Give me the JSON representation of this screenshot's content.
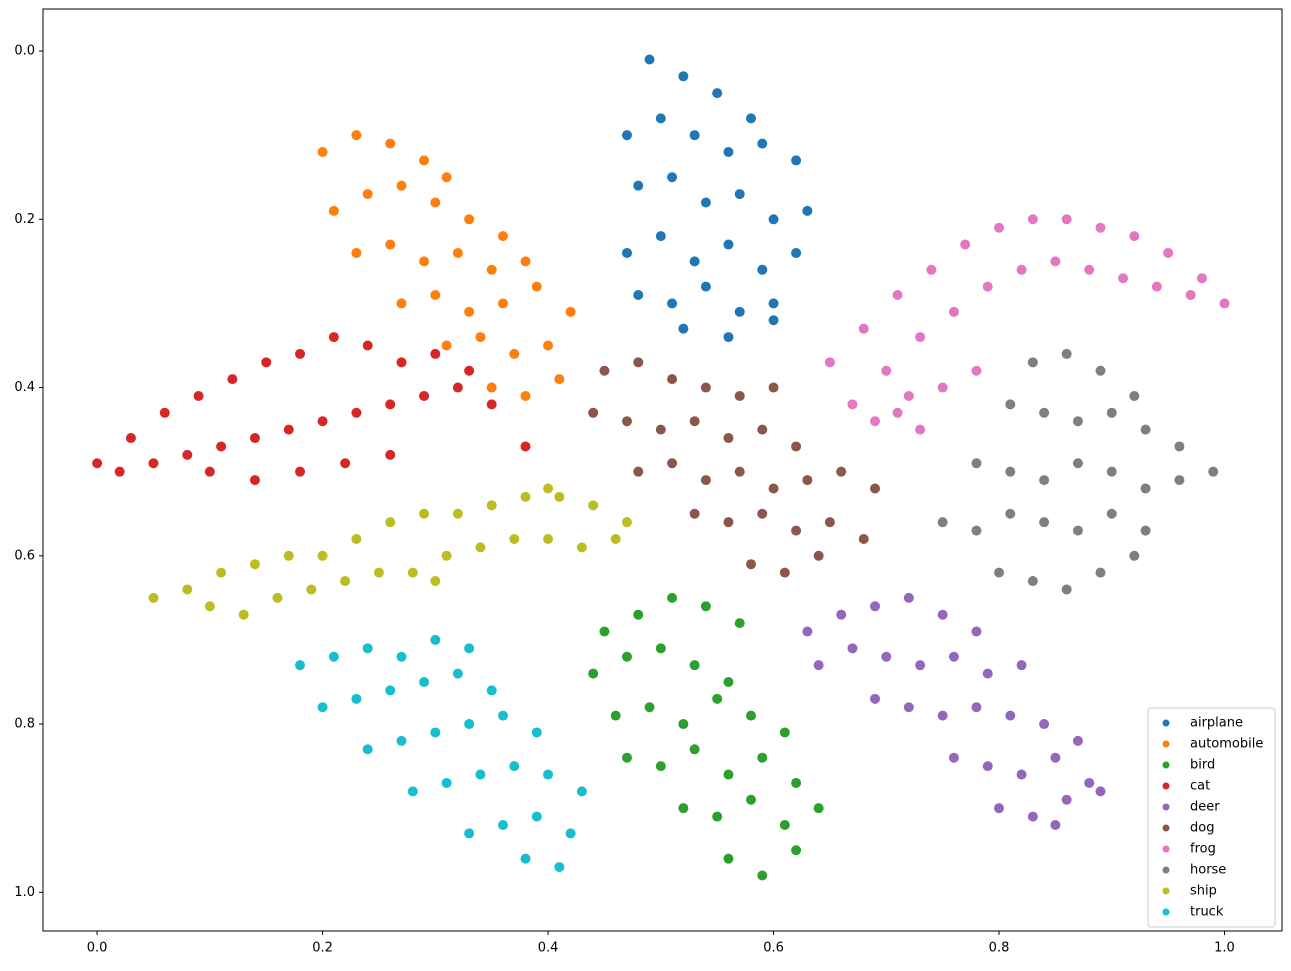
{
  "chart_data": {
    "type": "scatter",
    "xlim": [
      -0.048,
      1.051
    ],
    "ylim": [
      1.046,
      -0.05
    ],
    "y_inverted": true,
    "xticks": [
      {
        "value": 0,
        "label": "0.0"
      },
      0.2,
      0.4,
      0.6,
      0.8,
      {
        "value": 1,
        "label": "1.0"
      }
    ],
    "yticks": [
      {
        "value": 0,
        "label": "0.0"
      },
      0.2,
      0.4,
      0.6,
      0.8,
      {
        "value": 1,
        "label": "1.0"
      }
    ],
    "legend": "lower right",
    "series": [
      {
        "name": "airplane",
        "color": "#1f77b4",
        "x": [
          0.49,
          0.52,
          0.55,
          0.58,
          0.47,
          0.5,
          0.53,
          0.56,
          0.59,
          0.62,
          0.48,
          0.51,
          0.54,
          0.57,
          0.6,
          0.63,
          0.47,
          0.5,
          0.53,
          0.56,
          0.59,
          0.62,
          0.48,
          0.51,
          0.54,
          0.57,
          0.6,
          0.52,
          0.56,
          0.6
        ],
        "values": [
          0.01,
          0.03,
          0.05,
          0.08,
          0.1,
          0.08,
          0.1,
          0.12,
          0.11,
          0.13,
          0.16,
          0.15,
          0.18,
          0.17,
          0.2,
          0.19,
          0.24,
          0.22,
          0.25,
          0.23,
          0.26,
          0.24,
          0.29,
          0.3,
          0.28,
          0.31,
          0.3,
          0.33,
          0.34,
          0.32
        ]
      },
      {
        "name": "automobile",
        "color": "#ff7f0e",
        "x": [
          0.2,
          0.23,
          0.26,
          0.29,
          0.31,
          0.21,
          0.24,
          0.27,
          0.3,
          0.33,
          0.36,
          0.23,
          0.26,
          0.29,
          0.32,
          0.35,
          0.38,
          0.27,
          0.3,
          0.33,
          0.36,
          0.39,
          0.42,
          0.31,
          0.34,
          0.37,
          0.4,
          0.35,
          0.38,
          0.41
        ],
        "values": [
          0.12,
          0.1,
          0.11,
          0.13,
          0.15,
          0.19,
          0.17,
          0.16,
          0.18,
          0.2,
          0.22,
          0.24,
          0.23,
          0.25,
          0.24,
          0.26,
          0.25,
          0.3,
          0.29,
          0.31,
          0.3,
          0.28,
          0.31,
          0.35,
          0.34,
          0.36,
          0.35,
          0.4,
          0.41,
          0.39
        ]
      },
      {
        "name": "bird",
        "color": "#2ca02c",
        "x": [
          0.45,
          0.48,
          0.51,
          0.54,
          0.57,
          0.44,
          0.47,
          0.5,
          0.53,
          0.56,
          0.46,
          0.49,
          0.52,
          0.55,
          0.58,
          0.61,
          0.47,
          0.5,
          0.53,
          0.56,
          0.59,
          0.62,
          0.52,
          0.55,
          0.58,
          0.61,
          0.64,
          0.56,
          0.59,
          0.62
        ],
        "values": [
          0.69,
          0.67,
          0.65,
          0.66,
          0.68,
          0.74,
          0.72,
          0.71,
          0.73,
          0.75,
          0.79,
          0.78,
          0.8,
          0.77,
          0.79,
          0.81,
          0.84,
          0.85,
          0.83,
          0.86,
          0.84,
          0.87,
          0.9,
          0.91,
          0.89,
          0.92,
          0.9,
          0.96,
          0.98,
          0.95
        ]
      },
      {
        "name": "cat",
        "color": "#d62728",
        "x": [
          0.0,
          0.03,
          0.06,
          0.09,
          0.12,
          0.15,
          0.18,
          0.21,
          0.24,
          0.27,
          0.3,
          0.33,
          0.02,
          0.05,
          0.08,
          0.11,
          0.14,
          0.17,
          0.2,
          0.23,
          0.26,
          0.29,
          0.32,
          0.35,
          0.38,
          0.1,
          0.14,
          0.18,
          0.22,
          0.26
        ],
        "values": [
          0.49,
          0.46,
          0.43,
          0.41,
          0.39,
          0.37,
          0.36,
          0.34,
          0.35,
          0.37,
          0.36,
          0.38,
          0.5,
          0.49,
          0.48,
          0.47,
          0.46,
          0.45,
          0.44,
          0.43,
          0.42,
          0.41,
          0.4,
          0.42,
          0.47,
          0.5,
          0.51,
          0.5,
          0.49,
          0.48
        ]
      },
      {
        "name": "deer",
        "color": "#9467bd",
        "x": [
          0.63,
          0.66,
          0.69,
          0.72,
          0.75,
          0.78,
          0.64,
          0.67,
          0.7,
          0.73,
          0.76,
          0.79,
          0.82,
          0.69,
          0.72,
          0.75,
          0.78,
          0.81,
          0.84,
          0.87,
          0.76,
          0.79,
          0.82,
          0.85,
          0.88,
          0.8,
          0.83,
          0.86,
          0.89,
          0.85
        ],
        "values": [
          0.69,
          0.67,
          0.66,
          0.65,
          0.67,
          0.69,
          0.73,
          0.71,
          0.72,
          0.73,
          0.72,
          0.74,
          0.73,
          0.77,
          0.78,
          0.79,
          0.78,
          0.79,
          0.8,
          0.82,
          0.84,
          0.85,
          0.86,
          0.84,
          0.87,
          0.9,
          0.91,
          0.89,
          0.88,
          0.92
        ]
      },
      {
        "name": "dog",
        "color": "#8c564b",
        "x": [
          0.45,
          0.48,
          0.51,
          0.54,
          0.57,
          0.6,
          0.44,
          0.47,
          0.5,
          0.53,
          0.56,
          0.59,
          0.62,
          0.48,
          0.51,
          0.54,
          0.57,
          0.6,
          0.63,
          0.66,
          0.69,
          0.53,
          0.56,
          0.59,
          0.62,
          0.65,
          0.68,
          0.58,
          0.61,
          0.64
        ],
        "values": [
          0.38,
          0.37,
          0.39,
          0.4,
          0.41,
          0.4,
          0.43,
          0.44,
          0.45,
          0.44,
          0.46,
          0.45,
          0.47,
          0.5,
          0.49,
          0.51,
          0.5,
          0.52,
          0.51,
          0.5,
          0.52,
          0.55,
          0.56,
          0.55,
          0.57,
          0.56,
          0.58,
          0.61,
          0.62,
          0.6
        ]
      },
      {
        "name": "frog",
        "color": "#e377c2",
        "x": [
          0.65,
          0.68,
          0.71,
          0.74,
          0.77,
          0.8,
          0.83,
          0.86,
          0.89,
          0.92,
          0.95,
          0.98,
          0.67,
          0.7,
          0.73,
          0.76,
          0.79,
          0.82,
          0.85,
          0.88,
          0.91,
          0.94,
          0.97,
          1.0,
          0.69,
          0.72,
          0.75,
          0.78,
          0.73,
          0.71
        ],
        "values": [
          0.37,
          0.33,
          0.29,
          0.26,
          0.23,
          0.21,
          0.2,
          0.2,
          0.21,
          0.22,
          0.24,
          0.27,
          0.42,
          0.38,
          0.34,
          0.31,
          0.28,
          0.26,
          0.25,
          0.26,
          0.27,
          0.28,
          0.29,
          0.3,
          0.44,
          0.41,
          0.4,
          0.38,
          0.45,
          0.43
        ]
      },
      {
        "name": "horse",
        "color": "#7f7f7f",
        "x": [
          0.83,
          0.86,
          0.89,
          0.92,
          0.81,
          0.84,
          0.87,
          0.9,
          0.93,
          0.96,
          0.78,
          0.81,
          0.84,
          0.87,
          0.9,
          0.93,
          0.96,
          0.99,
          0.75,
          0.78,
          0.81,
          0.84,
          0.87,
          0.9,
          0.93,
          0.8,
          0.83,
          0.86,
          0.89,
          0.92
        ],
        "values": [
          0.37,
          0.36,
          0.38,
          0.41,
          0.42,
          0.43,
          0.44,
          0.43,
          0.45,
          0.47,
          0.49,
          0.5,
          0.51,
          0.49,
          0.5,
          0.52,
          0.51,
          0.5,
          0.56,
          0.57,
          0.55,
          0.56,
          0.57,
          0.55,
          0.57,
          0.62,
          0.63,
          0.64,
          0.62,
          0.6
        ]
      },
      {
        "name": "ship",
        "color": "#bcbd22",
        "x": [
          0.05,
          0.08,
          0.11,
          0.14,
          0.17,
          0.2,
          0.23,
          0.26,
          0.29,
          0.32,
          0.35,
          0.38,
          0.41,
          0.44,
          0.47,
          0.1,
          0.13,
          0.16,
          0.19,
          0.22,
          0.25,
          0.28,
          0.31,
          0.34,
          0.37,
          0.4,
          0.43,
          0.46,
          0.4,
          0.3
        ],
        "values": [
          0.65,
          0.64,
          0.62,
          0.61,
          0.6,
          0.6,
          0.58,
          0.56,
          0.55,
          0.55,
          0.54,
          0.53,
          0.53,
          0.54,
          0.56,
          0.66,
          0.67,
          0.65,
          0.64,
          0.63,
          0.62,
          0.62,
          0.6,
          0.59,
          0.58,
          0.58,
          0.59,
          0.58,
          0.52,
          0.63
        ]
      },
      {
        "name": "truck",
        "color": "#17becf",
        "x": [
          0.18,
          0.21,
          0.24,
          0.27,
          0.3,
          0.33,
          0.2,
          0.23,
          0.26,
          0.29,
          0.32,
          0.35,
          0.24,
          0.27,
          0.3,
          0.33,
          0.36,
          0.39,
          0.28,
          0.31,
          0.34,
          0.37,
          0.4,
          0.43,
          0.33,
          0.36,
          0.39,
          0.42,
          0.38,
          0.41
        ],
        "values": [
          0.73,
          0.72,
          0.71,
          0.72,
          0.7,
          0.71,
          0.78,
          0.77,
          0.76,
          0.75,
          0.74,
          0.76,
          0.83,
          0.82,
          0.81,
          0.8,
          0.79,
          0.81,
          0.88,
          0.87,
          0.86,
          0.85,
          0.86,
          0.88,
          0.93,
          0.92,
          0.91,
          0.93,
          0.96,
          0.97
        ]
      }
    ]
  }
}
